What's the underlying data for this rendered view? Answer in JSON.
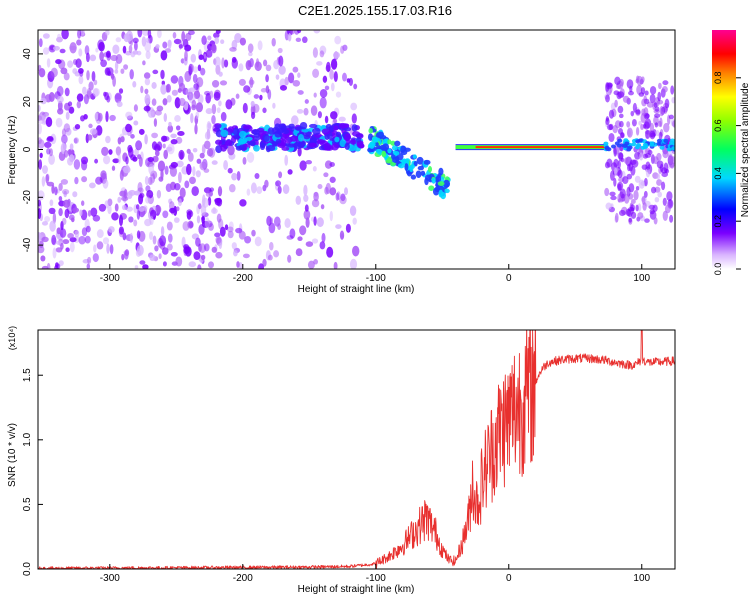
{
  "title": "C2E1.2025.155.17.03.R16",
  "chart_data": [
    {
      "type": "heatmap",
      "xlabel": "Height of straight line (km)",
      "ylabel": "Frequency (Hz)",
      "xlim": [
        -354,
        125
      ],
      "ylim": [
        -50,
        50
      ],
      "x_ticks": [
        -300,
        -200,
        -100,
        0,
        100
      ],
      "y_ticks": [
        -40,
        -20,
        0,
        20,
        40
      ],
      "colorbar": {
        "label": "Normalized spectral amplitude",
        "range": [
          0,
          1
        ],
        "ticks": [
          "0.0",
          "0.2",
          "0.4",
          "0.6",
          "0.8"
        ]
      },
      "features": {
        "diffuse_region_x": [
          -354,
          -115
        ],
        "strong_band_x": [
          -220,
          -110
        ],
        "strong_band_freq_hz": 5,
        "descending_trace_x": [
          -105,
          -45
        ],
        "descending_trace_freq_hz": [
          5,
          -16
        ],
        "line_x": [
          -40,
          72
        ],
        "line_freq_hz": 1,
        "right_region_x": [
          73,
          125
        ],
        "right_region_freq_hz": 2
      }
    },
    {
      "type": "line",
      "xlabel": "Height of straight line (km)",
      "ylabel": "SNR (10 * v/v)",
      "multiplier": "(x10⁴)",
      "xlim": [
        -354,
        125
      ],
      "ylim": [
        0,
        1.85
      ],
      "x_ticks": [
        -300,
        -200,
        -100,
        0,
        100
      ],
      "y_ticks": [
        "0.0",
        "0.5",
        "1.0",
        "1.5"
      ],
      "color": "#e8302e",
      "series": [
        {
          "x": [
            -354,
            -250,
            -150,
            -120,
            -100,
            -90,
            -80,
            -70,
            -62,
            -55,
            -50,
            -45,
            -40,
            -35,
            -30,
            -27,
            -25,
            -22,
            -20,
            -15,
            -10,
            -5,
            0,
            5,
            10,
            15,
            20,
            25,
            30,
            40,
            50,
            60,
            70,
            80,
            90,
            95,
            100,
            105,
            110,
            125
          ],
          "values": [
            0.005,
            0.01,
            0.015,
            0.02,
            0.04,
            0.1,
            0.18,
            0.3,
            0.4,
            0.28,
            0.15,
            0.07,
            0.06,
            0.2,
            0.4,
            0.7,
            0.5,
            0.55,
            0.7,
            0.85,
            1.0,
            1.1,
            1.15,
            1.25,
            1.3,
            1.35,
            1.45,
            1.55,
            1.6,
            1.62,
            1.63,
            1.63,
            1.62,
            1.6,
            1.58,
            1.58,
            1.62,
            1.6,
            1.6,
            1.61
          ]
        }
      ]
    }
  ]
}
